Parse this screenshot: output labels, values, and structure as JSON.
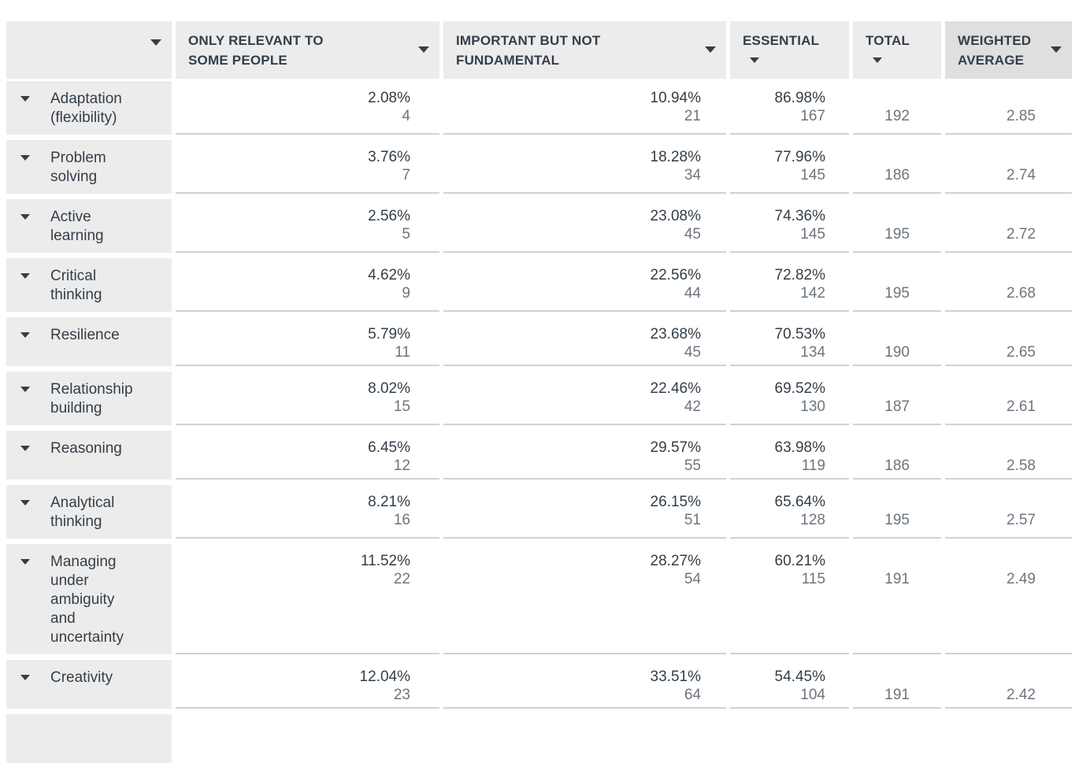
{
  "colors": {
    "header_bg": "#ececec",
    "sorted_header_bg": "#dfdfdf",
    "label_bg": "#ececec",
    "dark_text": "#333e48",
    "muted_text": "#6d757d",
    "divider": "#d2d2d2"
  },
  "icons": {
    "sort_dropdown": "chevron-down-icon"
  },
  "table": {
    "columns": [
      {
        "label": ""
      },
      {
        "label": "ONLY RELEVANT TO SOME PEOPLE"
      },
      {
        "label": "IMPORTANT BUT NOT FUNDAMENTAL"
      },
      {
        "label": "ESSENTIAL"
      },
      {
        "label": "TOTAL"
      },
      {
        "label": "WEIGHTED AVERAGE"
      }
    ],
    "rows": [
      {
        "label": "Adaptation (flexibility)",
        "answers": [
          {
            "pct": "2.08%",
            "count": "4"
          },
          {
            "pct": "10.94%",
            "count": "21"
          },
          {
            "pct": "86.98%",
            "count": "167"
          }
        ],
        "total": "192",
        "weighted": "2.85"
      },
      {
        "label": "Problem solving",
        "answers": [
          {
            "pct": "3.76%",
            "count": "7"
          },
          {
            "pct": "18.28%",
            "count": "34"
          },
          {
            "pct": "77.96%",
            "count": "145"
          }
        ],
        "total": "186",
        "weighted": "2.74"
      },
      {
        "label": "Active learning",
        "answers": [
          {
            "pct": "2.56%",
            "count": "5"
          },
          {
            "pct": "23.08%",
            "count": "45"
          },
          {
            "pct": "74.36%",
            "count": "145"
          }
        ],
        "total": "195",
        "weighted": "2.72"
      },
      {
        "label": "Critical thinking",
        "answers": [
          {
            "pct": "4.62%",
            "count": "9"
          },
          {
            "pct": "22.56%",
            "count": "44"
          },
          {
            "pct": "72.82%",
            "count": "142"
          }
        ],
        "total": "195",
        "weighted": "2.68"
      },
      {
        "label": "Resilience",
        "answers": [
          {
            "pct": "5.79%",
            "count": "11"
          },
          {
            "pct": "23.68%",
            "count": "45"
          },
          {
            "pct": "70.53%",
            "count": "134"
          }
        ],
        "total": "190",
        "weighted": "2.65"
      },
      {
        "label": "Relationship building",
        "answers": [
          {
            "pct": "8.02%",
            "count": "15"
          },
          {
            "pct": "22.46%",
            "count": "42"
          },
          {
            "pct": "69.52%",
            "count": "130"
          }
        ],
        "total": "187",
        "weighted": "2.61"
      },
      {
        "label": "Reasoning",
        "answers": [
          {
            "pct": "6.45%",
            "count": "12"
          },
          {
            "pct": "29.57%",
            "count": "55"
          },
          {
            "pct": "63.98%",
            "count": "119"
          }
        ],
        "total": "186",
        "weighted": "2.58"
      },
      {
        "label": "Analytical thinking",
        "answers": [
          {
            "pct": "8.21%",
            "count": "16"
          },
          {
            "pct": "26.15%",
            "count": "51"
          },
          {
            "pct": "65.64%",
            "count": "128"
          }
        ],
        "total": "195",
        "weighted": "2.57"
      },
      {
        "label": "Managing under ambiguity and uncertainty",
        "answers": [
          {
            "pct": "11.52%",
            "count": "22"
          },
          {
            "pct": "28.27%",
            "count": "54"
          },
          {
            "pct": "60.21%",
            "count": "115"
          }
        ],
        "total": "191",
        "weighted": "2.49"
      },
      {
        "label": "Creativity",
        "answers": [
          {
            "pct": "12.04%",
            "count": "23"
          },
          {
            "pct": "33.51%",
            "count": "64"
          },
          {
            "pct": "54.45%",
            "count": "104"
          }
        ],
        "total": "191",
        "weighted": "2.42"
      }
    ],
    "partial_next_row": true
  }
}
